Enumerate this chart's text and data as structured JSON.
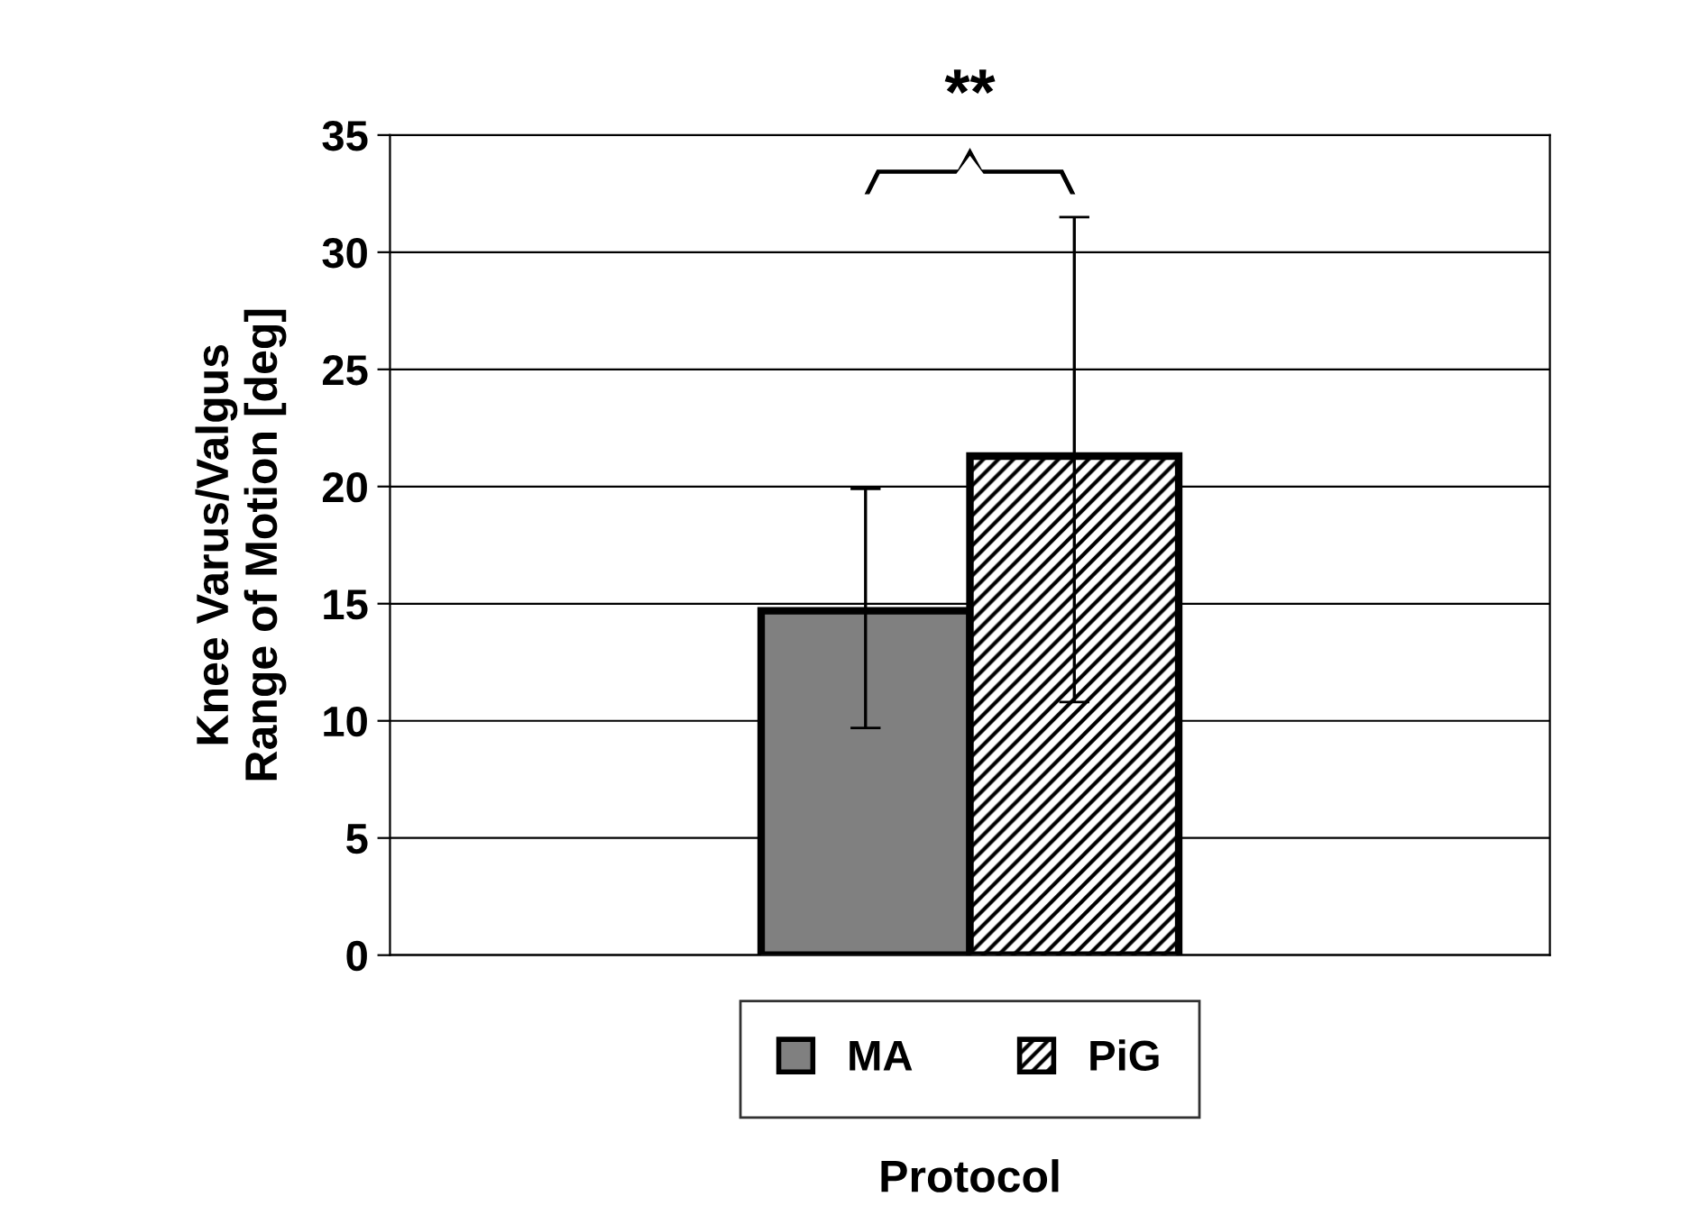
{
  "chart_data": {
    "type": "bar",
    "xlabel": "Protocol",
    "ylabel": "Knee Varus/Valgus\nRange of Motion [deg]",
    "categories": [
      null
    ],
    "series": [
      {
        "name": "MA",
        "color": "#808080",
        "values": [
          14.7
        ],
        "errors": [
          [
            9.7,
            19.9
          ]
        ]
      },
      {
        "name": "PiG",
        "color": "#000000",
        "values": [
          21.3
        ],
        "errors": [
          [
            10.8,
            31.5
          ]
        ]
      }
    ],
    "ylim": [
      0,
      35
    ],
    "yticks": [
      0,
      5,
      10,
      15,
      20,
      25,
      30,
      35
    ],
    "grid": "y",
    "legend": "bottom",
    "annotations": [
      "**"
    ]
  }
}
